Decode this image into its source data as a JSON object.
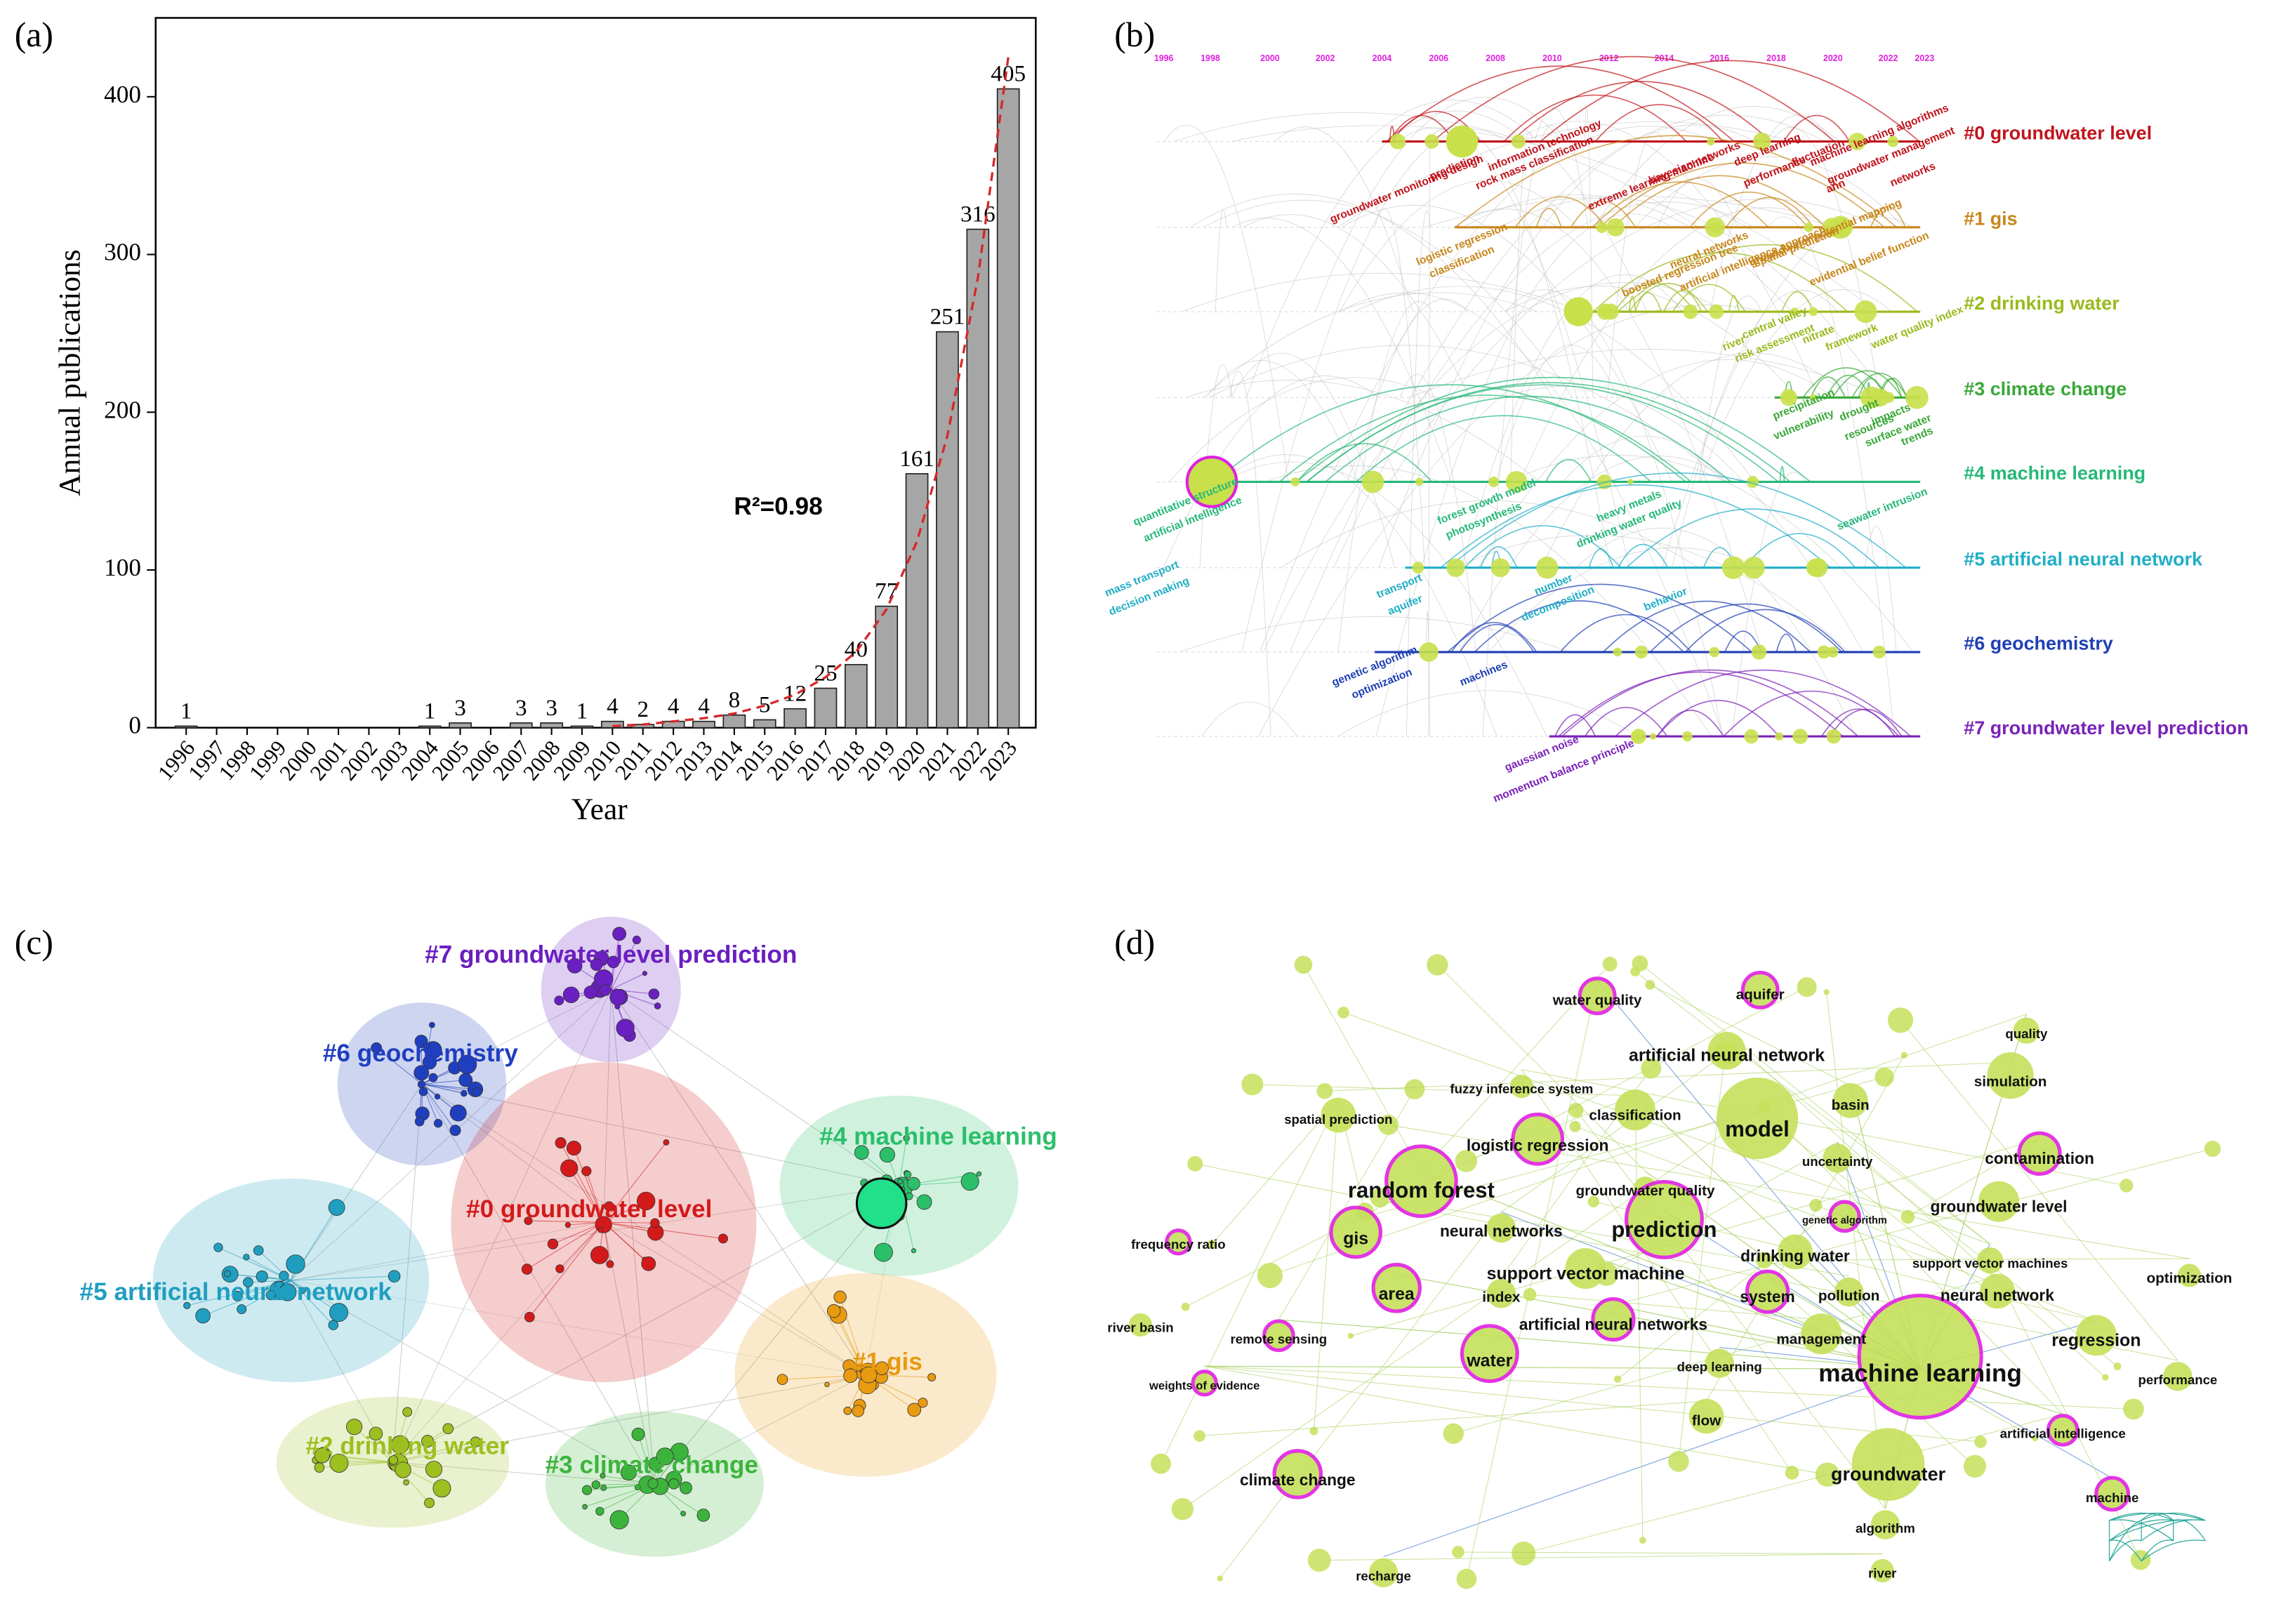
{
  "chart_data": {
    "type": "bar",
    "x_label": "Year",
    "y_label": "Annual publications",
    "annotation": "R²=0.98",
    "categories": [
      "1996",
      "1997",
      "1998",
      "1999",
      "2000",
      "2001",
      "2002",
      "2003",
      "2004",
      "2005",
      "2006",
      "2007",
      "2008",
      "2009",
      "2010",
      "2011",
      "2012",
      "2013",
      "2014",
      "2015",
      "2016",
      "2017",
      "2018",
      "2019",
      "2020",
      "2021",
      "2022",
      "2023"
    ],
    "values": [
      1,
      0,
      0,
      0,
      0,
      0,
      0,
      0,
      1,
      3,
      0,
      3,
      3,
      1,
      4,
      2,
      4,
      4,
      8,
      5,
      12,
      25,
      40,
      77,
      161,
      251,
      316,
      405
    ],
    "color": "#a6a6a6",
    "trend": {
      "color": "#d62728",
      "values": [
        null,
        null,
        null,
        null,
        null,
        null,
        null,
        null,
        null,
        null,
        null,
        null,
        null,
        null,
        1,
        2,
        4,
        6,
        9,
        14,
        21,
        32,
        48,
        75,
        118,
        185,
        285,
        425
      ]
    },
    "ylim": [
      0,
      450
    ],
    "yticks": [
      0,
      100,
      200,
      300,
      400
    ]
  },
  "panel_labels": [
    "(a)",
    "(b)",
    "(c)",
    "(d)"
  ],
  "timeline": {
    "years": [
      "1996",
      "1998",
      "2000",
      "2002",
      "2004",
      "2006",
      "2008",
      "2010",
      "2012",
      "2014",
      "2016",
      "2018",
      "2020",
      "2022",
      "2023"
    ],
    "clusters": [
      {
        "label": "#0 groundwater level",
        "color": "#c0141c"
      },
      {
        "label": "#1 gis",
        "color": "#c8861a"
      },
      {
        "label": "#2 drinking water",
        "color": "#9aba1c"
      },
      {
        "label": "#3 climate change",
        "color": "#38a838"
      },
      {
        "label": "#4 machine learning",
        "color": "#25b878"
      },
      {
        "label": "#5 artificial neural network",
        "color": "#20aec6"
      },
      {
        "label": "#6 geochemistry",
        "color": "#1f3fb4"
      },
      {
        "label": "#7 groundwater level prediction",
        "color": "#7a22b8"
      }
    ],
    "keywords": [
      "groundwater monitoring design",
      "prediction",
      "rock mass classification",
      "information technology",
      "extreme learning machine",
      "bayesian networks",
      "deep learning",
      "performance",
      "fluctuation",
      "machine learning algorithms",
      "groundwater management",
      "ann",
      "networks",
      "logistic regression",
      "classification",
      "boosted regression tree",
      "neural networks",
      "artificial intelligence approach",
      "spatial prediction",
      "evidential belief function",
      "groundwater potential mapping",
      "river",
      "central valley",
      "risk assessment",
      "nitrate",
      "framework",
      "water quality index",
      "precipitation",
      "vulnerability",
      "drought",
      "resources",
      "impacts",
      "surface water",
      "trends",
      "quantitative structure",
      "artificial intelligence",
      "forest growth model",
      "photosynthesis",
      "heavy metals",
      "drinking water quality",
      "seawater intrusion",
      "mass transport",
      "decision making",
      "transport",
      "aquifer",
      "number",
      "decomposition",
      "behavior",
      "genetic algorithm",
      "optimization",
      "machines",
      "gaussian noise",
      "momentum balance principle"
    ]
  },
  "cluster_map": {
    "clusters": [
      {
        "label": "#7 groundwater level prediction",
        "color": "#6a1fc0"
      },
      {
        "label": "#6 geochemistry",
        "color": "#1f3fbf"
      },
      {
        "label": "#4 machine learning",
        "color": "#2bbf6a"
      },
      {
        "label": "#0 groundwater level",
        "color": "#d31a1a"
      },
      {
        "label": "#5 artificial neural network",
        "color": "#1f9ec0"
      },
      {
        "label": "#1 gis",
        "color": "#e89a10"
      },
      {
        "label": "#2 drinking water",
        "color": "#9dbf20"
      },
      {
        "label": "#3 climate change",
        "color": "#3cb43c"
      }
    ]
  },
  "keyword_network": {
    "keywords": [
      "water quality",
      "aquifer",
      "artificial neural network",
      "quality",
      "simulation",
      "fuzzy inference system",
      "spatial prediction",
      "classification",
      "model",
      "basin",
      "logistic regression",
      "uncertainty",
      "contamination",
      "random forest",
      "groundwater quality",
      "genetic algorithm",
      "groundwater level",
      "frequency ratio",
      "gis",
      "neural networks",
      "prediction",
      "drinking water",
      "support vector machines",
      "optimization",
      "support vector machine",
      "area",
      "index",
      "system",
      "pollution",
      "neural network",
      "river basin",
      "remote sensing",
      "artificial neural networks",
      "management",
      "regression",
      "deep learning",
      "water",
      "machine learning",
      "weights of evidence",
      "performance",
      "flow",
      "artificial intelligence",
      "climate change",
      "groundwater",
      "machine",
      "algorithm",
      "recharge",
      "river"
    ]
  }
}
